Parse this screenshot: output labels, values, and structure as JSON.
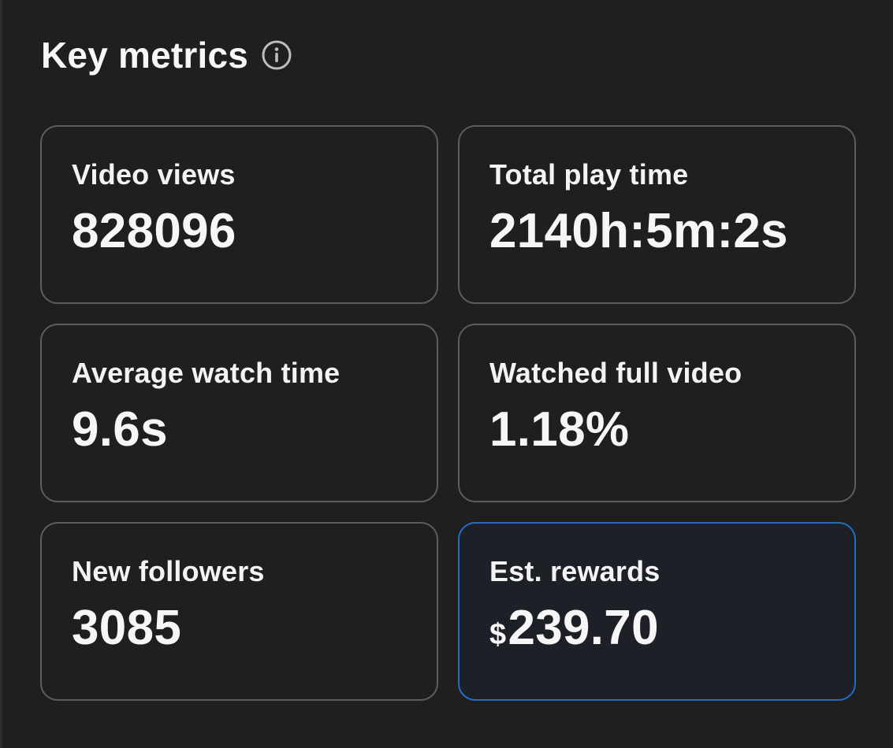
{
  "header": {
    "title": "Key metrics",
    "info_icon": "info-circle-icon"
  },
  "metrics": [
    {
      "label": "Video views",
      "value": "828096"
    },
    {
      "label": "Total play time",
      "value": "2140h:5m:2s"
    },
    {
      "label": "Average watch time",
      "value": "9.6s"
    },
    {
      "label": "Watched full video",
      "value": "1.18%"
    },
    {
      "label": "New followers",
      "value": "3085"
    },
    {
      "label": "Est. rewards",
      "currency": "$",
      "value": "239.70",
      "selected": true
    }
  ],
  "colors": {
    "background": "#1f1f1f",
    "card_border": "#5d5d5d",
    "selected_border": "#1f6fc9",
    "text": "#f4f4f4"
  }
}
